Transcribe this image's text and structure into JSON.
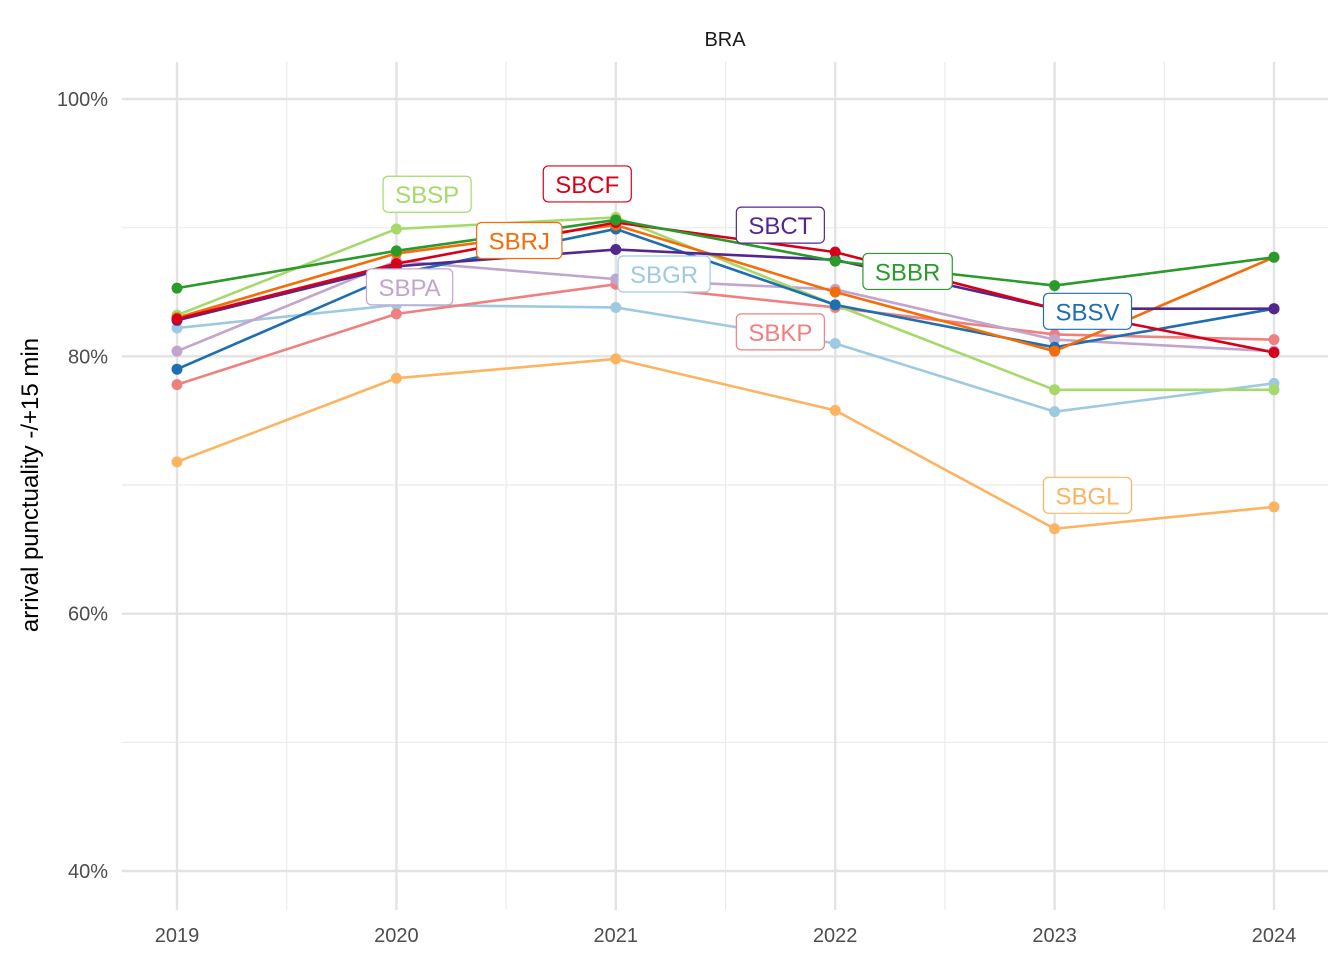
{
  "chart_data": {
    "type": "line",
    "facet_title": "BRA",
    "title": "",
    "xlabel": "",
    "ylabel": "arrival punctuality -/+15 min",
    "x": [
      2019,
      2020,
      2021,
      2022,
      2023,
      2024
    ],
    "x_tick_labels": [
      "2019",
      "2020",
      "2021",
      "2022",
      "2023",
      "2024"
    ],
    "ylim": [
      0.375,
      1.03
    ],
    "y_ticks": [
      0.4,
      0.6,
      0.8,
      1.0
    ],
    "y_tick_labels": [
      "40%",
      "60%",
      "80%",
      "100%"
    ],
    "y_minor_ticks": [
      0.5,
      0.7,
      0.9
    ],
    "grid": true,
    "legend": "direct labels on lines",
    "series": [
      {
        "name": "SBGL",
        "color": "#fdb462",
        "values": [
          0.718,
          0.783,
          0.798,
          0.758,
          0.666,
          0.683
        ],
        "label_x": 2023.15,
        "label_y": 0.692
      },
      {
        "name": "SBGR",
        "color": "#9ecae1",
        "values": [
          0.822,
          0.84,
          0.838,
          0.81,
          0.757,
          0.779
        ],
        "label_x": 2021.22,
        "label_y": 0.864
      },
      {
        "name": "SBKP",
        "color": "#f08080",
        "values": [
          0.778,
          0.833,
          0.856,
          0.838,
          0.817,
          0.813
        ],
        "label_x": 2021.75,
        "label_y": 0.819
      },
      {
        "name": "SBPA",
        "color": "#c2a5cf",
        "values": [
          0.804,
          0.874,
          0.86,
          0.852,
          0.813,
          0.804
        ],
        "label_x": 2020.06,
        "label_y": 0.854
      },
      {
        "name": "SBSP",
        "color": "#a6d96a",
        "values": [
          0.832,
          0.899,
          0.908,
          0.84,
          0.774,
          0.774
        ],
        "label_x": 2020.14,
        "label_y": 0.926
      },
      {
        "name": "SBSV",
        "color": "#1f6eaf",
        "values": [
          0.79,
          0.864,
          0.899,
          0.84,
          0.807,
          0.837
        ],
        "label_x": 2023.15,
        "label_y": 0.835
      },
      {
        "name": "SBRJ",
        "color": "#f46d0a",
        "values": [
          0.83,
          0.88,
          0.902,
          0.85,
          0.804,
          0.877
        ],
        "label_x": 2020.56,
        "label_y": 0.89
      },
      {
        "name": "SBCT",
        "color": "#54278f",
        "values": [
          0.828,
          0.87,
          0.883,
          0.875,
          0.837,
          0.837
        ],
        "label_x": 2021.75,
        "label_y": 0.902
      },
      {
        "name": "SBCF",
        "color": "#d7001a",
        "values": [
          0.829,
          0.872,
          0.904,
          0.881,
          0.837,
          0.803
        ],
        "label_x": 2020.87,
        "label_y": 0.934
      },
      {
        "name": "SBBR",
        "color": "#2a9a2a",
        "values": [
          0.853,
          0.882,
          0.906,
          0.874,
          0.855,
          0.877
        ],
        "label_x": 2022.33,
        "label_y": 0.866
      }
    ]
  }
}
